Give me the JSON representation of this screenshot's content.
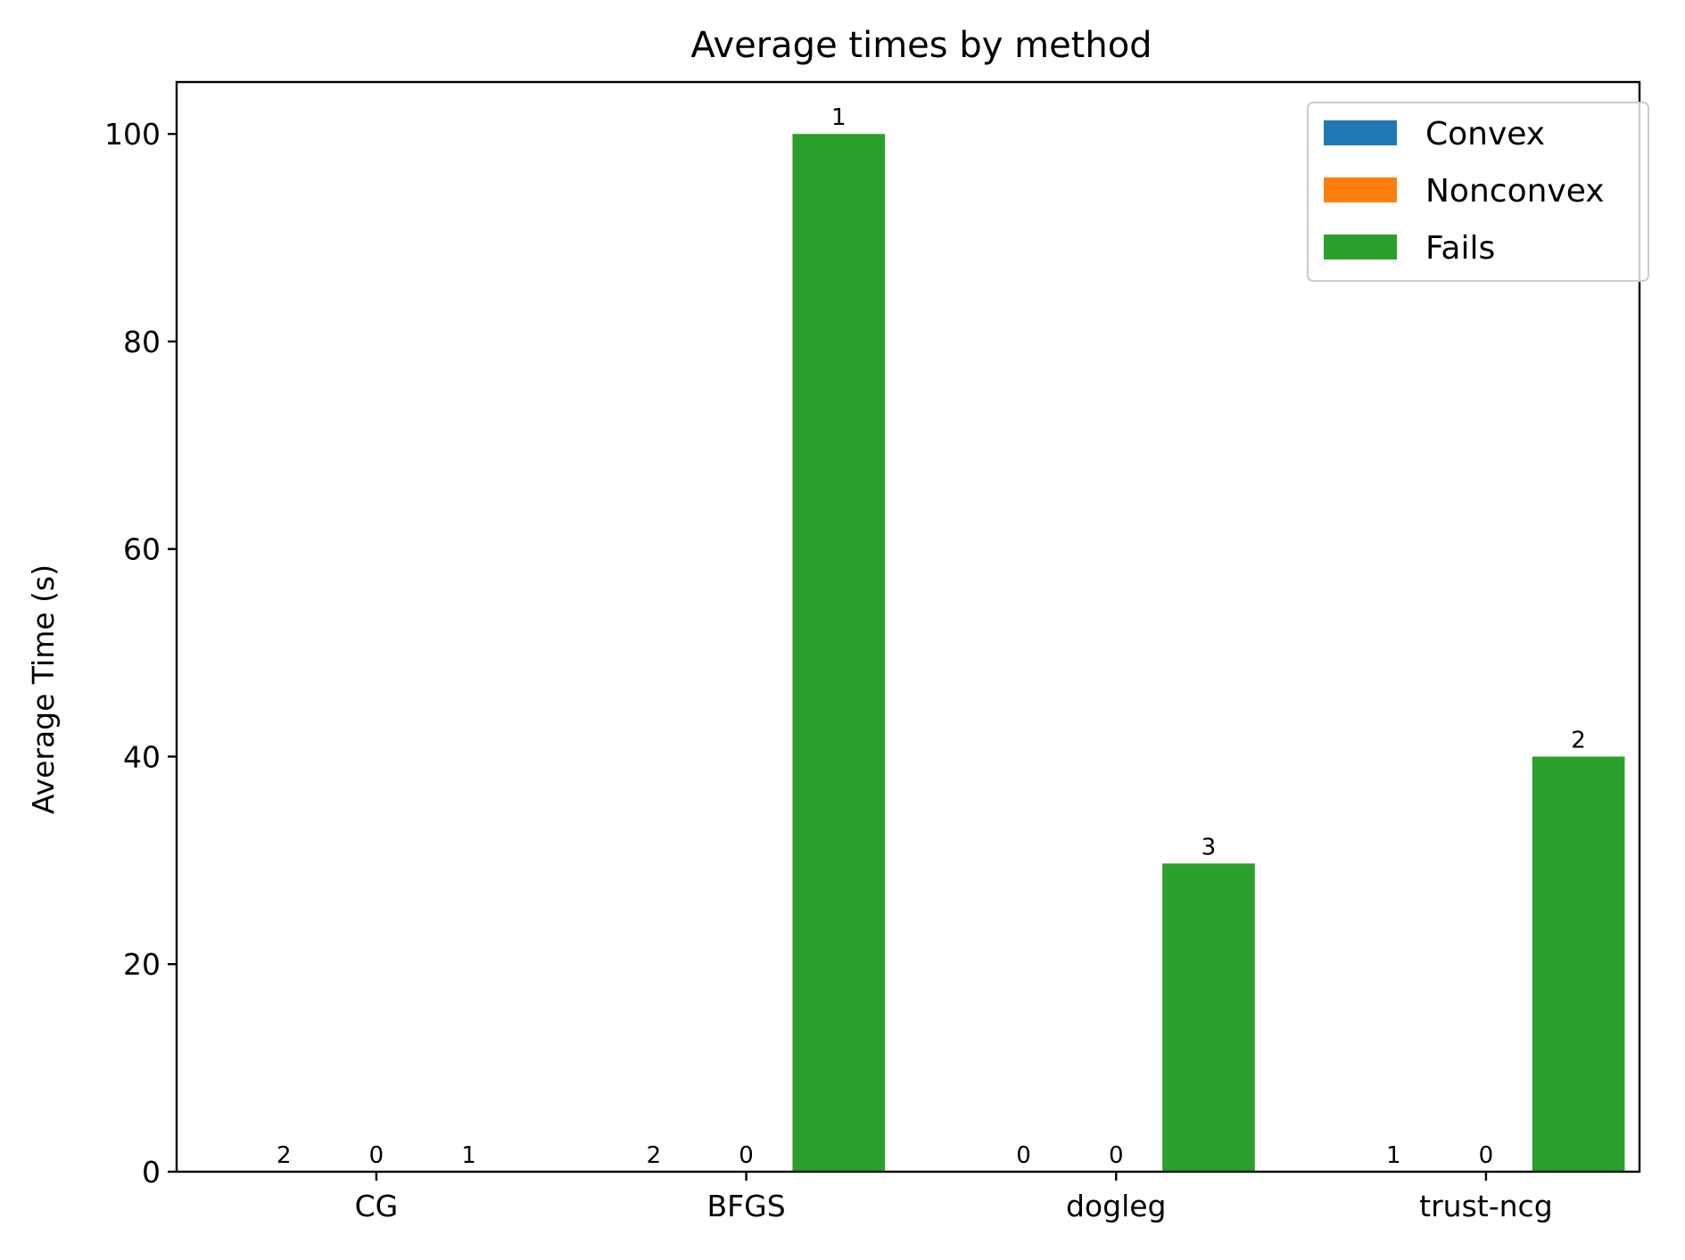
{
  "chart_data": {
    "type": "bar",
    "title": "Average times by method",
    "xlabel": "",
    "ylabel": "Average Time (s)",
    "categories": [
      "CG",
      "BFGS",
      "dogleg",
      "trust-ncg"
    ],
    "series": [
      {
        "name": "Convex",
        "color": "#1f77b4",
        "values": [
          0,
          0,
          0,
          0
        ],
        "bar_labels": [
          "2",
          "2",
          "0",
          "1"
        ]
      },
      {
        "name": "Nonconvex",
        "color": "#ff7f0e",
        "values": [
          0,
          0,
          0,
          0
        ],
        "bar_labels": [
          "0",
          "0",
          "0",
          "0"
        ]
      },
      {
        "name": "Fails",
        "color": "#2ca02c",
        "values": [
          0,
          100,
          29.7,
          40
        ],
        "bar_labels": [
          "1",
          "1",
          "3",
          "2"
        ]
      }
    ],
    "ylim": [
      0,
      105
    ],
    "yticks": [
      0,
      20,
      40,
      60,
      80,
      100
    ],
    "grid": false,
    "legend_position": "top-right"
  }
}
